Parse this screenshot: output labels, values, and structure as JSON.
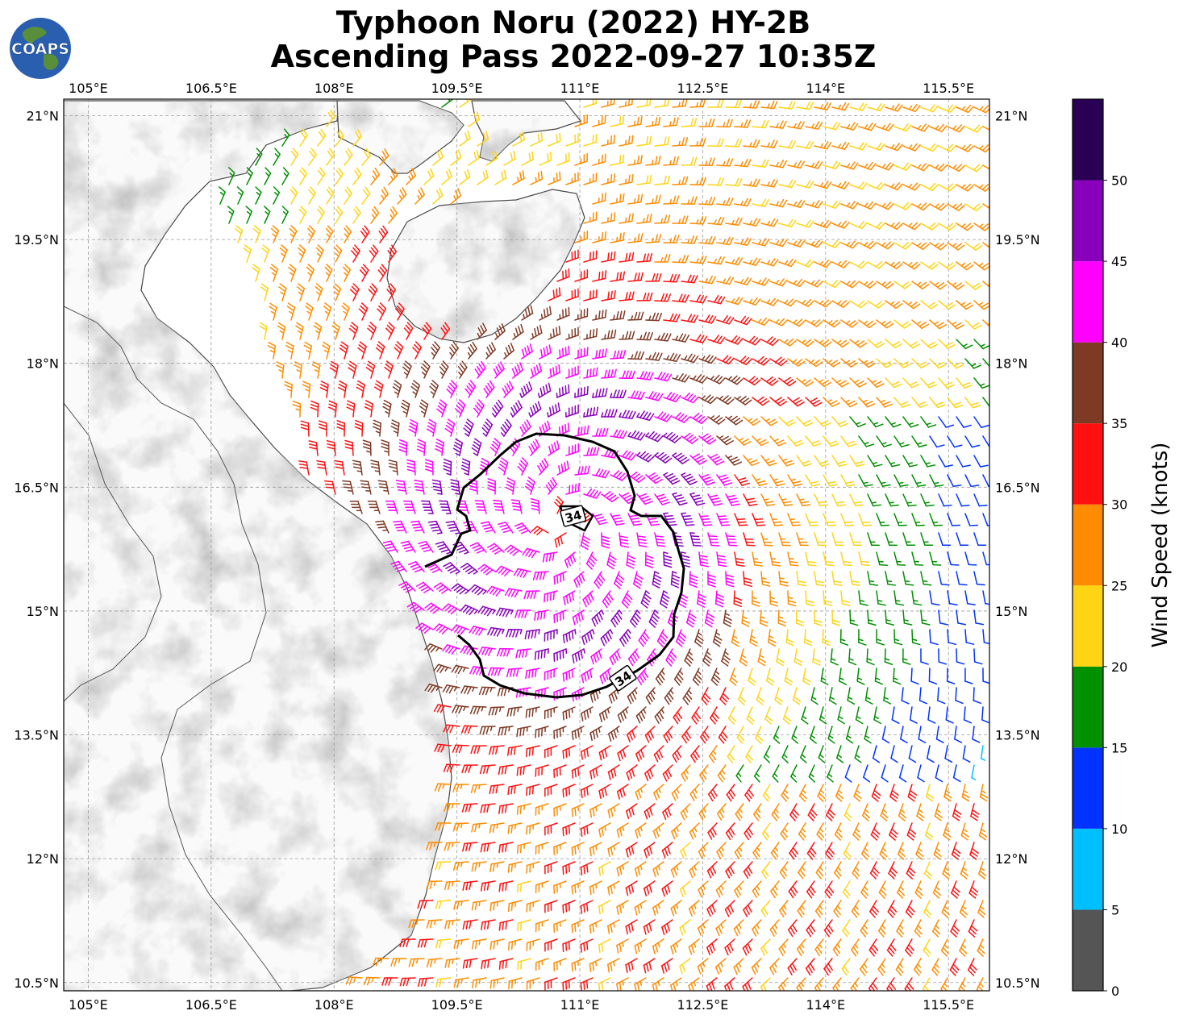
{
  "title": {
    "line1": "Typhoon Noru (2022) HY-2B",
    "line2": "Ascending Pass 2022-09-27 10:35Z"
  },
  "logo": {
    "text": "COAPS",
    "colors": {
      "ocean": "#2a5fb0",
      "land": "#5a8f3a"
    }
  },
  "map": {
    "lon_range": [
      104.7,
      116.0
    ],
    "lat_range": [
      10.4,
      21.2
    ],
    "lon_tick_values": [
      105,
      106.5,
      108,
      109.5,
      111,
      112.5,
      114,
      115.5
    ],
    "lat_tick_values": [
      21,
      19.5,
      18,
      16.5,
      15,
      13.5,
      12,
      10.5
    ],
    "lon_tick_labels": [
      "105°E",
      "106.5°E",
      "108°E",
      "109.5°E",
      "111°E",
      "112.5°E",
      "114°E",
      "115.5°E"
    ],
    "lat_tick_labels": [
      "21°N",
      "19.5°N",
      "18°N",
      "16.5°N",
      "15°N",
      "13.5°N",
      "12°N",
      "10.5°N"
    ],
    "gridlines": true,
    "contour_label": "34",
    "storm_center": [
      110.8,
      16.1
    ]
  },
  "colorbar": {
    "label": "Wind Speed (knots)",
    "bounds": [
      0,
      5,
      10,
      15,
      20,
      25,
      30,
      35,
      40,
      45,
      50,
      55
    ],
    "tick_labels": [
      "0",
      "5",
      "10",
      "15",
      "20",
      "25",
      "30",
      "35",
      "40",
      "45",
      "50"
    ],
    "colors": [
      "#555555",
      "#00bfff",
      "#0033ff",
      "#009000",
      "#ffd414",
      "#ff8c00",
      "#ff1010",
      "#7f3a25",
      "#ff00ff",
      "#8800bb",
      "#2a0055"
    ]
  }
}
